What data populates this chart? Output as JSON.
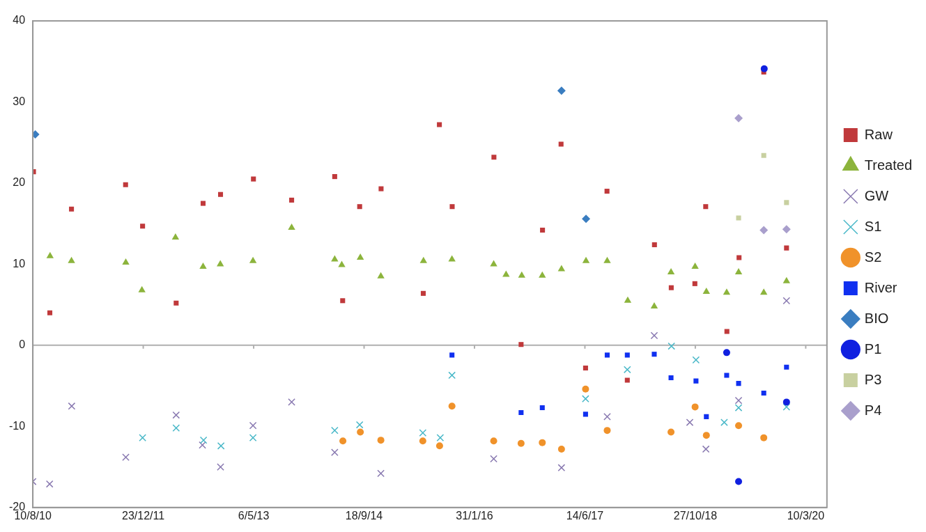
{
  "chart_data": {
    "type": "scatter",
    "xlim": [
      "2010-08-10",
      "2020-06-14"
    ],
    "ylim": [
      -20,
      40
    ],
    "xticks": [
      {
        "value": "2010-08-10",
        "label": "10/8/10"
      },
      {
        "value": "2011-12-23",
        "label": "23/12/11"
      },
      {
        "value": "2013-05-06",
        "label": "6/5/13"
      },
      {
        "value": "2014-09-18",
        "label": "18/9/14"
      },
      {
        "value": "2016-01-31",
        "label": "31/1/16"
      },
      {
        "value": "2017-06-14",
        "label": "14/6/17"
      },
      {
        "value": "2018-10-27",
        "label": "27/10/18"
      },
      {
        "value": "2020-03-10",
        "label": "10/3/20"
      }
    ],
    "yticks": [
      -20,
      -10,
      0,
      10,
      20,
      30,
      40
    ],
    "grid": false,
    "legend": "right",
    "ref_lines": [
      {
        "axis": "y",
        "value": 0,
        "color": "#b0b0b0"
      }
    ],
    "series": [
      {
        "name": "Raw",
        "color": "#c0393b",
        "marker": "square",
        "x": [
          "2010-08-13",
          "2010-10-26",
          "2011-02-01",
          "2011-10-04",
          "2011-12-20",
          "2012-05-20",
          "2012-09-19",
          "2012-12-07",
          "2013-05-05",
          "2013-10-25",
          "2014-05-08",
          "2014-06-13",
          "2014-08-29",
          "2014-12-04",
          "2015-06-13",
          "2015-08-25",
          "2015-10-22",
          "2016-04-28",
          "2016-08-29",
          "2016-12-04",
          "2017-02-26",
          "2017-06-17",
          "2017-09-22",
          "2017-12-23",
          "2018-04-25",
          "2018-07-10",
          "2018-10-25",
          "2018-12-13",
          "2019-03-19",
          "2019-05-13",
          "2019-09-02",
          "2019-12-14"
        ],
        "values": [
          21.4,
          4.0,
          16.8,
          19.8,
          14.7,
          5.2,
          17.5,
          18.6,
          20.5,
          17.9,
          20.8,
          5.5,
          17.1,
          19.3,
          6.4,
          27.2,
          17.1,
          23.2,
          0.1,
          14.2,
          24.8,
          -2.8,
          19.0,
          -4.3,
          12.4,
          7.1,
          7.6,
          17.1,
          1.7,
          10.8,
          33.7,
          12.0
        ]
      },
      {
        "name": "Treated",
        "color": "#8cb43c",
        "marker": "triangle",
        "x": [
          "2010-10-27",
          "2011-02-01",
          "2011-10-05",
          "2011-12-17",
          "2012-05-17",
          "2012-09-19",
          "2012-12-06",
          "2013-05-03",
          "2013-10-25",
          "2014-05-08",
          "2014-06-09",
          "2014-09-01",
          "2014-12-03",
          "2015-06-14",
          "2015-10-21",
          "2016-04-27",
          "2016-06-22",
          "2016-09-01",
          "2016-12-03",
          "2017-02-28",
          "2017-06-19",
          "2017-09-23",
          "2017-12-25",
          "2018-04-24",
          "2018-07-09",
          "2018-10-26",
          "2018-12-16",
          "2019-03-18",
          "2019-05-11",
          "2019-09-02",
          "2019-12-14"
        ],
        "values": [
          11.0,
          10.4,
          10.2,
          6.8,
          13.3,
          9.7,
          10.0,
          10.4,
          14.5,
          10.6,
          9.9,
          10.8,
          8.5,
          10.4,
          10.6,
          10.0,
          8.7,
          8.6,
          8.6,
          9.4,
          10.4,
          10.4,
          5.5,
          4.8,
          9.0,
          9.7,
          6.6,
          6.5,
          9.0,
          6.5,
          7.9
        ]
      },
      {
        "name": "GW",
        "color": "#8878b0",
        "marker": "cross",
        "x": [
          "2010-08-10",
          "2010-10-25",
          "2011-02-02",
          "2011-10-05",
          "2012-05-20",
          "2012-09-16",
          "2012-12-07",
          "2013-05-03",
          "2013-10-25",
          "2014-05-08",
          "2014-12-03",
          "2016-04-27",
          "2017-02-28",
          "2017-09-23",
          "2018-04-24",
          "2018-10-02",
          "2018-12-14",
          "2019-05-11",
          "2019-12-14"
        ],
        "values": [
          -16.8,
          -17.1,
          -7.5,
          -13.8,
          -8.6,
          -12.3,
          -15.0,
          -9.9,
          -7.0,
          -13.2,
          -15.8,
          -14.0,
          -15.1,
          -8.8,
          1.2,
          -9.5,
          -12.8,
          -6.8,
          5.5
        ]
      },
      {
        "name": "S1",
        "color": "#49b8c8",
        "marker": "cross",
        "x": [
          "2011-12-20",
          "2012-05-20",
          "2012-09-21",
          "2012-12-09",
          "2013-05-03",
          "2014-05-08",
          "2014-08-29",
          "2015-06-11",
          "2015-08-29",
          "2015-10-21",
          "2017-06-17",
          "2017-12-23",
          "2018-07-11",
          "2018-10-30",
          "2019-03-07",
          "2019-05-11",
          "2019-12-14"
        ],
        "values": [
          -11.4,
          -10.2,
          -11.7,
          -12.4,
          -11.4,
          -10.5,
          -9.8,
          -10.8,
          -11.4,
          -3.7,
          -6.6,
          -3.0,
          -0.1,
          -1.8,
          -9.5,
          -7.7,
          -7.6
        ]
      },
      {
        "name": "S2",
        "color": "#f0922a",
        "marker": "circle",
        "x": [
          "2014-06-14",
          "2014-09-01",
          "2014-12-03",
          "2015-06-11",
          "2015-08-26",
          "2015-10-21",
          "2016-04-27",
          "2016-08-29",
          "2016-12-03",
          "2017-02-28",
          "2017-06-17",
          "2017-09-23",
          "2018-07-09",
          "2018-10-26",
          "2018-12-16",
          "2019-05-11",
          "2019-09-02"
        ],
        "values": [
          -11.8,
          -10.7,
          -11.7,
          -11.8,
          -12.4,
          -7.5,
          -11.8,
          -12.1,
          -12.0,
          -12.8,
          -5.4,
          -10.5,
          -10.7,
          -7.6,
          -11.1,
          -9.9,
          -11.4
        ]
      },
      {
        "name": "River",
        "color": "#1030f0",
        "marker": "square",
        "x": [
          "2015-10-21",
          "2016-08-29",
          "2016-12-03",
          "2017-06-17",
          "2017-09-23",
          "2017-12-23",
          "2018-04-24",
          "2018-07-09",
          "2018-10-30",
          "2018-12-16",
          "2019-03-18",
          "2019-05-11",
          "2019-09-02",
          "2019-12-14"
        ],
        "values": [
          -1.2,
          -8.3,
          -7.7,
          -8.5,
          -1.2,
          -1.2,
          -1.1,
          -4.0,
          -4.4,
          -8.8,
          -3.7,
          -4.7,
          -5.9,
          -2.7
        ]
      },
      {
        "name": "BIO",
        "color": "#3a7dc0",
        "marker": "diamond",
        "x": [
          "2010-08-21",
          "2017-02-28",
          "2017-06-19"
        ],
        "values": [
          26.0,
          31.4,
          15.6
        ]
      },
      {
        "name": "P1",
        "color": "#1020e0",
        "marker": "circle",
        "x": [
          "2019-03-18",
          "2019-05-11",
          "2019-09-04",
          "2019-12-14"
        ],
        "values": [
          -0.9,
          -16.8,
          34.1,
          -7.0
        ]
      },
      {
        "name": "P3",
        "color": "#c8d0a0",
        "marker": "square",
        "x": [
          "2019-05-11",
          "2019-09-02",
          "2019-12-14"
        ],
        "values": [
          15.7,
          23.4,
          17.6
        ]
      },
      {
        "name": "P4",
        "color": "#a99fcc",
        "marker": "diamond",
        "x": [
          "2019-05-11",
          "2019-09-02",
          "2019-12-14"
        ],
        "values": [
          28.0,
          14.2,
          14.3
        ]
      }
    ]
  }
}
